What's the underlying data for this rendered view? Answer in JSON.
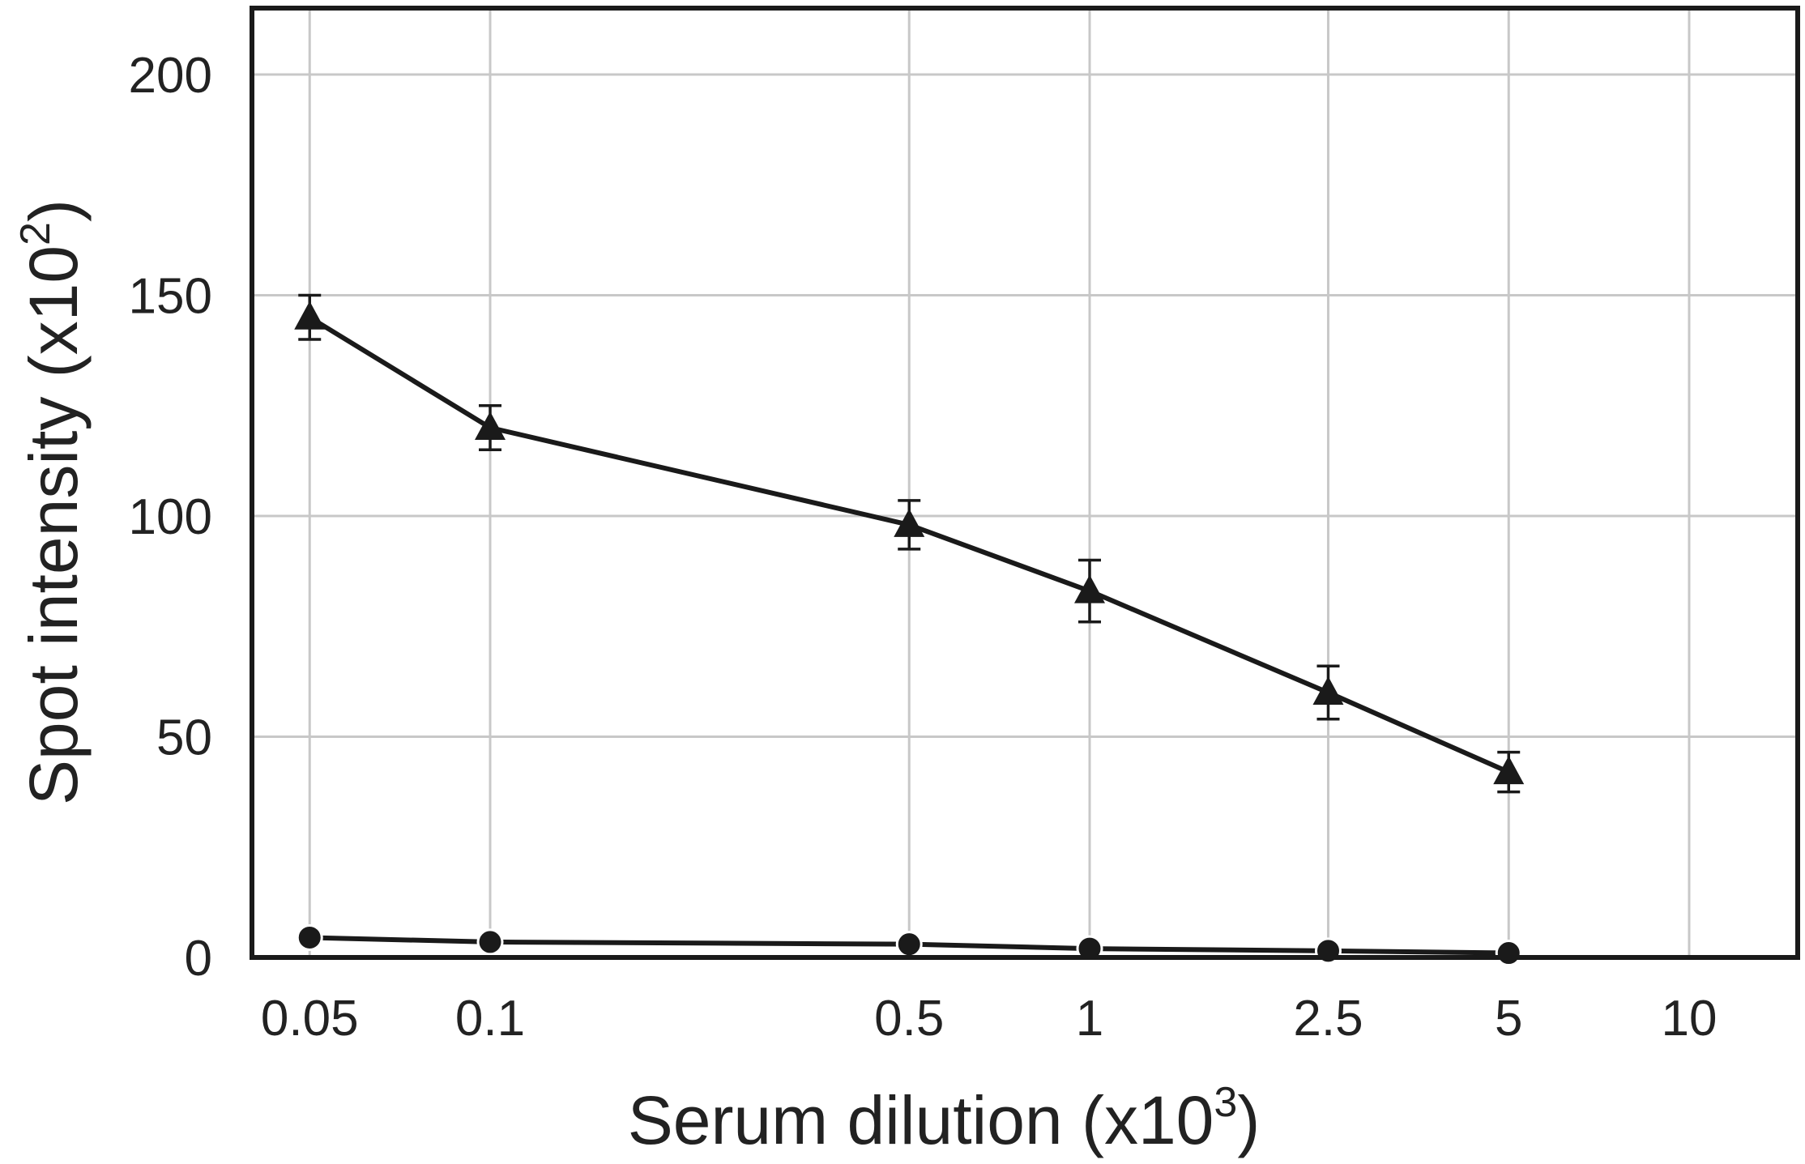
{
  "chart_data": {
    "type": "line",
    "xlabel": "Serum dilution (x10",
    "xlabel_sup": "3",
    "xlabel_end": ")",
    "ylabel": "Spot intensity (x10",
    "ylabel_sup": "2",
    "ylabel_end": ")",
    "x_tick_labels": [
      "0.05",
      "0.1",
      "0.5",
      "1",
      "2.5",
      "5",
      "10"
    ],
    "x_scale": "log",
    "y_ticks": [
      0,
      50,
      100,
      150,
      200
    ],
    "ylim": [
      0,
      200
    ],
    "grid": true,
    "legend": "none",
    "series": [
      {
        "marker": "triangle",
        "color": "#1a1a1a",
        "x": [
          0.05,
          0.1,
          0.5,
          1,
          2.5,
          5
        ],
        "y": [
          145,
          120,
          98,
          83,
          60,
          42
        ],
        "error": [
          5,
          5,
          5.5,
          7,
          6,
          4.5
        ]
      },
      {
        "marker": "circle",
        "color": "#1a1a1a",
        "x": [
          0.05,
          0.1,
          0.5,
          1,
          2.5,
          5
        ],
        "y": [
          4.5,
          3.5,
          3,
          2,
          1.5,
          1
        ]
      }
    ]
  }
}
